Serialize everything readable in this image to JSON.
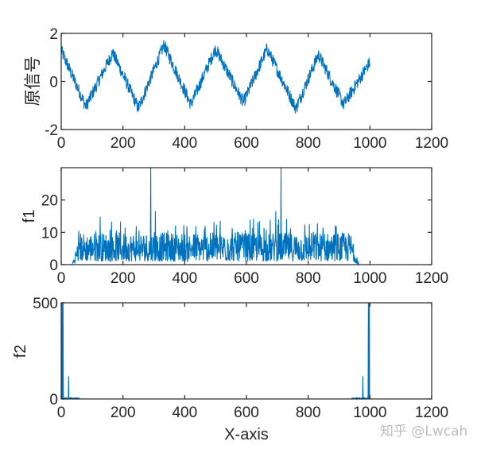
{
  "figure": {
    "xlabel": "X-axis",
    "watermark": "知乎 @Lwcah",
    "line_color": "#0072BD",
    "axis_color": "#262626"
  },
  "chart_data": [
    {
      "type": "line",
      "title": "",
      "ylabel": "原信号",
      "xlabel": "",
      "xlim": [
        0,
        1200
      ],
      "ylim": [
        -2,
        2
      ],
      "xticks": [
        0,
        200,
        400,
        600,
        800,
        1000,
        1200
      ],
      "yticks": [
        -2,
        0,
        2
      ],
      "grid": false,
      "series": [
        {
          "name": "original signal",
          "description": "Noisy triangle-like periodic wave, period ~167 samples, amplitude ~1.2 with noise ±0.4, N=1000",
          "x_range": [
            0,
            1000
          ],
          "peaks_x": [
            0,
            167,
            333,
            500,
            667,
            833
          ],
          "peaks_y": [
            1.6,
            1.5,
            1.9,
            1.7,
            1.7,
            1.4
          ],
          "troughs_x": [
            80,
            250,
            420,
            590,
            760,
            915
          ],
          "troughs_y": [
            -1.3,
            -1.4,
            -1.2,
            -1.1,
            -1.4,
            -1.2
          ],
          "end_value": 1.0
        }
      ]
    },
    {
      "type": "line",
      "title": "",
      "ylabel": "f1",
      "xlabel": "",
      "xlim": [
        0,
        1200
      ],
      "ylim": [
        0,
        30
      ],
      "xticks": [
        0,
        200,
        400,
        600,
        800,
        1000,
        1200
      ],
      "yticks": [
        0,
        10,
        20
      ],
      "grid": false,
      "series": [
        {
          "name": "f1",
          "description": "Broadband noisy spectrum ~0-15, zero below x≈40 and above x≈960, two spikes",
          "x_range": [
            0,
            1000
          ],
          "band": [
            45,
            955
          ],
          "typical_range": [
            1,
            13
          ],
          "spikes": [
            {
              "x": 290,
              "y": 30
            },
            {
              "x": 712,
              "y": 30
            },
            {
              "x": 305,
              "y": 16.5
            },
            {
              "x": 126,
              "y": 14.8
            },
            {
              "x": 695,
              "y": 16.5
            }
          ]
        }
      ]
    },
    {
      "type": "line",
      "title": "",
      "ylabel": "f2",
      "xlabel": "X-axis",
      "xlim": [
        0,
        1200
      ],
      "ylim": [
        0,
        500
      ],
      "xticks": [
        0,
        200,
        400,
        600,
        800,
        1000,
        1200
      ],
      "yticks": [
        0,
        500
      ],
      "grid": false,
      "series": [
        {
          "name": "f2",
          "description": "Near-zero everywhere except spikes at both ends (symmetric spectrum)",
          "x_range": [
            0,
            1000
          ],
          "spikes": [
            {
              "x": 3,
              "y": 500
            },
            {
              "x": 6,
              "y": 500
            },
            {
              "x": 24,
              "y": 118
            },
            {
              "x": 977,
              "y": 118
            },
            {
              "x": 995,
              "y": 500
            },
            {
              "x": 998,
              "y": 500
            }
          ]
        }
      ]
    }
  ]
}
